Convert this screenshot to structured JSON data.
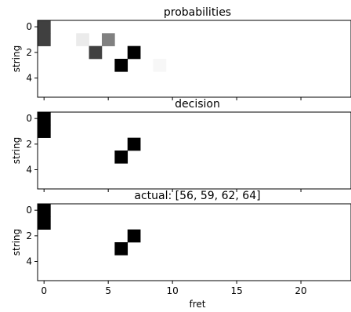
{
  "chart_data": [
    {
      "type": "heatmap",
      "title": "probabilities",
      "xlabel": "",
      "ylabel": "string",
      "xlim": [
        -0.5,
        23.9
      ],
      "ylim": [
        5.5,
        -0.5
      ],
      "yticks": [
        0,
        2,
        4
      ],
      "ytick_labels": [
        "0",
        "2",
        "4"
      ],
      "xticks": [
        0,
        5,
        10,
        15,
        20
      ],
      "xtick_labels": [
        "",
        "",
        "",
        "",
        ""
      ],
      "colormap": "gray_r",
      "cells": [
        {
          "x": 0,
          "y": 0,
          "value": 0.75
        },
        {
          "x": 0,
          "y": 1,
          "value": 0.75
        },
        {
          "x": 3,
          "y": 1,
          "value": 0.08
        },
        {
          "x": 5,
          "y": 1,
          "value": 0.5
        },
        {
          "x": 4,
          "y": 2,
          "value": 0.75
        },
        {
          "x": 7,
          "y": 2,
          "value": 1.0
        },
        {
          "x": 6,
          "y": 3,
          "value": 1.0
        },
        {
          "x": 9,
          "y": 3,
          "value": 0.03
        }
      ]
    },
    {
      "type": "heatmap",
      "title": "decision",
      "xlabel": "",
      "ylabel": "string",
      "xlim": [
        -0.5,
        23.9
      ],
      "ylim": [
        5.5,
        -0.5
      ],
      "yticks": [
        0,
        2,
        4
      ],
      "ytick_labels": [
        "0",
        "2",
        "4"
      ],
      "xticks": [
        0,
        5,
        10,
        15,
        20
      ],
      "xtick_labels": [
        "",
        "",
        "",
        "",
        ""
      ],
      "colormap": "gray_r",
      "cells": [
        {
          "x": 0,
          "y": 0,
          "value": 1.0
        },
        {
          "x": 0,
          "y": 1,
          "value": 1.0
        },
        {
          "x": 7,
          "y": 2,
          "value": 1.0
        },
        {
          "x": 6,
          "y": 3,
          "value": 1.0
        }
      ]
    },
    {
      "type": "heatmap",
      "title": "actual: [56, 59, 62, 64]",
      "xlabel": "fret",
      "ylabel": "string",
      "xlim": [
        -0.5,
        23.9
      ],
      "ylim": [
        5.5,
        -0.5
      ],
      "yticks": [
        0,
        2,
        4
      ],
      "ytick_labels": [
        "0",
        "2",
        "4"
      ],
      "xticks": [
        0,
        5,
        10,
        15,
        20
      ],
      "xtick_labels": [
        "0",
        "5",
        "10",
        "15",
        "20"
      ],
      "colormap": "gray_r",
      "cells": [
        {
          "x": 0,
          "y": 0,
          "value": 1.0
        },
        {
          "x": 0,
          "y": 1,
          "value": 1.0
        },
        {
          "x": 7,
          "y": 2,
          "value": 1.0
        },
        {
          "x": 6,
          "y": 3,
          "value": 1.0
        }
      ]
    }
  ]
}
